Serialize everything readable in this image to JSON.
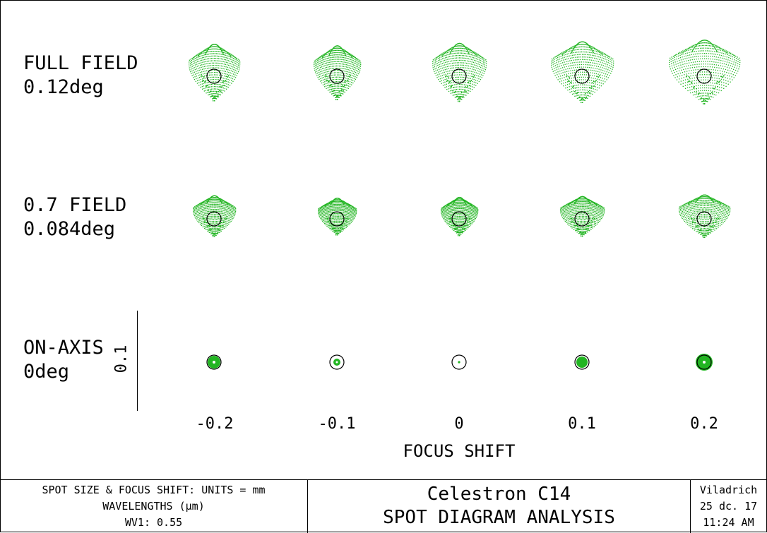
{
  "colors": {
    "spot": "#22b522",
    "circle": "#000000",
    "text": "#000000"
  },
  "rows": [
    {
      "name": "FULL FIELD",
      "angle": "0.12deg"
    },
    {
      "name": "0.7 FIELD",
      "angle": "0.084deg"
    },
    {
      "name": "ON-AXIS",
      "angle": "0deg"
    }
  ],
  "focus_shifts": [
    "-0.2",
    "-0.1",
    "0",
    "0.1",
    "0.2"
  ],
  "axis_title": "FOCUS SHIFT",
  "scale_label": "0.1",
  "footer": {
    "units": "SPOT SIZE & FOCUS SHIFT: UNITS = mm",
    "wavelengths": "WAVELENGTHS (µm)",
    "wv1": "WV1: 0.55",
    "title": "Celestron C14",
    "subtitle": "SPOT DIAGRAM ANALYSIS",
    "author": "Viladrich",
    "date": "25 dc. 17",
    "time": "11:24 AM"
  }
}
